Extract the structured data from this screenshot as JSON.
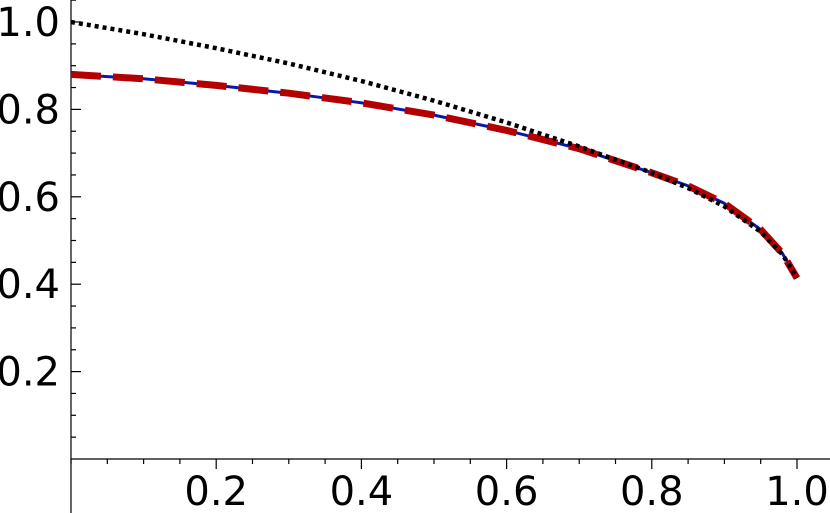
{
  "chart_data": {
    "type": "line",
    "title": "",
    "xlabel": "",
    "ylabel": "",
    "xlim": [
      0,
      1.0
    ],
    "ylim": [
      0,
      1.05
    ],
    "x_ticks": [
      0.2,
      0.4,
      0.6,
      0.8,
      1.0
    ],
    "x_tick_labels": [
      "0.2",
      "0.4",
      "0.6",
      "0.8",
      "1.0"
    ],
    "y_ticks": [
      0.2,
      0.4,
      0.6,
      0.8,
      1.0
    ],
    "y_tick_labels": [
      "0.2",
      "0.4",
      "0.6",
      "0.8",
      "1.0"
    ],
    "x_minor_step": 0.05,
    "y_minor_step": 0.05,
    "grid": false,
    "legend": "none",
    "series": [
      {
        "style": "solid",
        "color": "#0a1aa8",
        "x": [
          0,
          0.1,
          0.2,
          0.3,
          0.4,
          0.5,
          0.6,
          0.7,
          0.8,
          0.85,
          0.9,
          0.95,
          0.98,
          1.0
        ],
        "y": [
          0.88,
          0.87,
          0.855,
          0.837,
          0.815,
          0.787,
          0.752,
          0.71,
          0.655,
          0.625,
          0.585,
          0.525,
          0.47,
          0.414
        ]
      },
      {
        "style": "dashed",
        "color": "#b30000",
        "x": [
          0,
          0.1,
          0.2,
          0.3,
          0.4,
          0.5,
          0.6,
          0.7,
          0.8,
          0.85,
          0.9,
          0.95,
          0.98,
          1.0
        ],
        "y": [
          0.88,
          0.87,
          0.855,
          0.837,
          0.815,
          0.787,
          0.752,
          0.71,
          0.655,
          0.625,
          0.585,
          0.525,
          0.47,
          0.414
        ]
      },
      {
        "style": "dotted",
        "color": "#000000",
        "x": [
          0,
          0.1,
          0.2,
          0.3,
          0.4,
          0.5,
          0.6,
          0.7,
          0.8,
          0.85,
          0.9,
          0.95,
          0.98,
          1.0
        ],
        "y": [
          1.0,
          0.972,
          0.94,
          0.905,
          0.865,
          0.82,
          0.77,
          0.715,
          0.655,
          0.62,
          0.578,
          0.52,
          0.468,
          0.414
        ]
      }
    ]
  }
}
